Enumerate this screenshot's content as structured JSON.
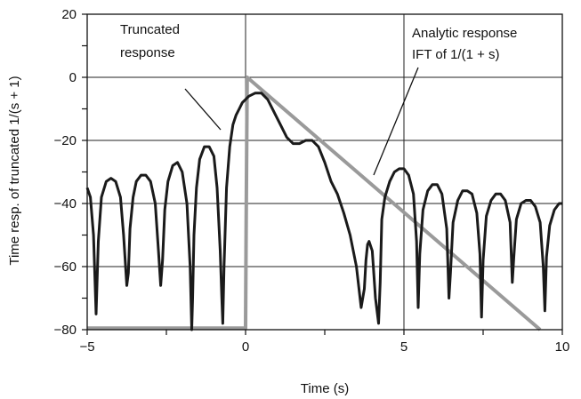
{
  "chart_data": {
    "type": "line",
    "title": "",
    "xlabel": "Time (s)",
    "ylabel": "Time resp. of truncated 1/(s + 1)",
    "xlim": [
      -5,
      10
    ],
    "ylim": [
      -80,
      20
    ],
    "xticks": [
      -5,
      0,
      5,
      10
    ],
    "yticks": [
      20,
      0,
      -20,
      -40,
      -60,
      -80
    ],
    "x_tick_labels": [
      "−5",
      "0",
      "5",
      "10"
    ],
    "y_tick_labels": [
      "20",
      "0",
      "−20",
      "−40",
      "−60",
      "−80"
    ],
    "grid": true,
    "legend": "none",
    "series": [
      {
        "color": "#1a1a1a",
        "x": [
          -5.0,
          -4.9,
          -4.8,
          -4.72,
          -4.65,
          -4.55,
          -4.4,
          -4.25,
          -4.1,
          -3.95,
          -3.85,
          -3.75,
          -3.7,
          -3.65,
          -3.55,
          -3.45,
          -3.3,
          -3.15,
          -3.0,
          -2.85,
          -2.75,
          -2.68,
          -2.62,
          -2.55,
          -2.45,
          -2.3,
          -2.15,
          -2.0,
          -1.85,
          -1.75,
          -1.7,
          -1.67,
          -1.63,
          -1.55,
          -1.45,
          -1.3,
          -1.15,
          -1.0,
          -0.9,
          -0.8,
          -0.75,
          -0.72,
          -0.68,
          -0.6,
          -0.5,
          -0.4,
          -0.3,
          -0.2,
          -0.1,
          0.0,
          0.1,
          0.3,
          0.5,
          0.7,
          0.9,
          1.1,
          1.3,
          1.5,
          1.7,
          1.9,
          2.1,
          2.3,
          2.5,
          2.7,
          2.9,
          3.1,
          3.3,
          3.5,
          3.65,
          3.75,
          3.8,
          3.85,
          3.9,
          4.0,
          4.1,
          4.2,
          4.25,
          4.3,
          4.4,
          4.55,
          4.7,
          4.85,
          5.0,
          5.15,
          5.3,
          5.4,
          5.45,
          5.5,
          5.6,
          5.75,
          5.9,
          6.05,
          6.2,
          6.35,
          6.42,
          6.47,
          6.55,
          6.7,
          6.85,
          7.0,
          7.15,
          7.3,
          7.4,
          7.45,
          7.5,
          7.6,
          7.75,
          7.9,
          8.05,
          8.2,
          8.35,
          8.42,
          8.47,
          8.55,
          8.7,
          8.85,
          9.0,
          9.15,
          9.3,
          9.4,
          9.45,
          9.5,
          9.6,
          9.75,
          9.9,
          10.0
        ],
        "y": [
          -35,
          -38,
          -50,
          -75,
          -52,
          -38,
          -33,
          -32,
          -33,
          -38,
          -50,
          -66,
          -62,
          -48,
          -38,
          -33,
          -31,
          -31,
          -33,
          -40,
          -55,
          -66,
          -58,
          -42,
          -33,
          -28,
          -27,
          -30,
          -40,
          -60,
          -80,
          -70,
          -50,
          -35,
          -26,
          -22,
          -22,
          -25,
          -35,
          -55,
          -70,
          -78,
          -60,
          -35,
          -22,
          -15,
          -12,
          -10,
          -8,
          -7,
          -6,
          -5,
          -5,
          -7,
          -11,
          -15,
          -19,
          -21,
          -21,
          -20,
          -20,
          -22,
          -27,
          -33,
          -37,
          -43,
          -50,
          -60,
          -73,
          -67,
          -58,
          -53,
          -52,
          -55,
          -70,
          -78,
          -65,
          -45,
          -38,
          -33,
          -30,
          -29,
          -29,
          -31,
          -37,
          -52,
          -73,
          -56,
          -42,
          -36,
          -34,
          -34,
          -37,
          -48,
          -70,
          -62,
          -46,
          -39,
          -36,
          -36,
          -37,
          -43,
          -56,
          -76,
          -58,
          -44,
          -39,
          -37,
          -37,
          -39,
          -46,
          -65,
          -57,
          -45,
          -40,
          -39,
          -39,
          -41,
          -46,
          -60,
          -74,
          -57,
          -47,
          -42,
          -40,
          -40
        ]
      },
      {
        "color": "#9a9a9a",
        "x": [
          -5.0,
          0.0,
          0.02,
          0.05,
          9.3
        ],
        "y": [
          -79.5,
          -79.5,
          -45,
          0,
          -80
        ]
      }
    ],
    "annotations": [
      {
        "lines": [
          "Truncated",
          "response"
        ]
      },
      {
        "lines": [
          "Analytic response",
          "IFT of 1/(1 + s)"
        ]
      }
    ]
  }
}
